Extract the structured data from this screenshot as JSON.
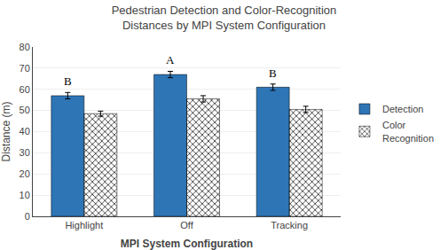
{
  "chart_data": {
    "type": "bar",
    "title": "Pedestrian Detection and Color-Recognition\nDistances by MPI System Configuration",
    "xlabel": "MPI System Configuration",
    "ylabel": "Distance (m)",
    "categories": [
      "Highlight",
      "Off",
      "Tracking"
    ],
    "series": [
      {
        "name": "Detection",
        "color": "#2E75B6",
        "values": [
          57.0,
          67.0,
          61.0
        ],
        "errors": [
          1.5,
          1.5,
          1.5
        ]
      },
      {
        "name": "Color\nRecognition",
        "color": "#2E75B6",
        "marker": "x",
        "values": [
          48.5,
          55.5,
          50.5
        ],
        "errors": [
          1.2,
          1.5,
          1.5
        ]
      }
    ],
    "group_labels": [
      "B",
      "A",
      "B"
    ],
    "ylim": [
      0,
      80
    ],
    "yticks": [
      0,
      10,
      20,
      30,
      40,
      50,
      60,
      70,
      80
    ],
    "grid": true,
    "legend": "right"
  }
}
